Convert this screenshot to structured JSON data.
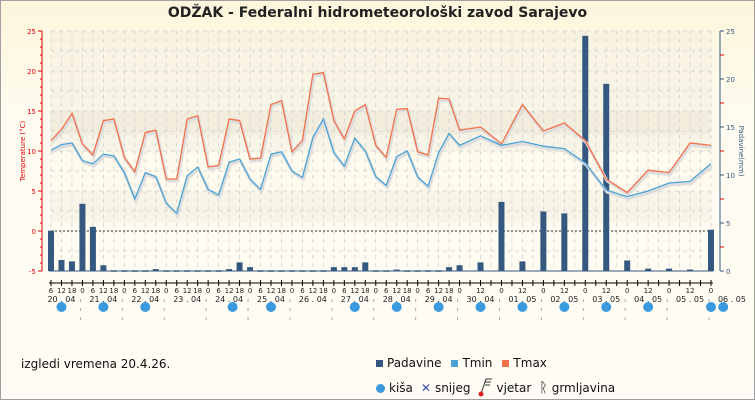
{
  "title": "ODŽAK - Federalni hidrometeorološki zavod Sarajevo",
  "footer": "izgledi vremena 20.4.26.",
  "legend": {
    "padavine": "Padavine",
    "tmin": "Tmin",
    "tmax": "Tmax",
    "kisa": "kiša",
    "snijeg": "snijeg",
    "vjetar": "vjetar",
    "grmljavina": "grmljavina"
  },
  "colors": {
    "padavine": "#34587f",
    "tmin": "#4aa3d6",
    "tmax": "#f4704a",
    "rain": "#3a9ae0",
    "axis_left": "#e00000",
    "axis_right": "#34587f"
  },
  "chart_data": {
    "type": "bar+line",
    "title": "ODŽAK - Federalni hidrometeorološki zavod Sarajevo",
    "ylabel": "Temperature (°C)",
    "y2label": "Padavine(mm)",
    "ylim": [
      -5,
      25
    ],
    "y2lim": [
      0,
      25
    ],
    "yticks": [
      -5,
      0,
      5,
      10,
      15,
      20,
      25
    ],
    "y2ticks": [
      0,
      5,
      10,
      15,
      20,
      25
    ],
    "days": [
      "20 . 04",
      "21 . 04",
      "22 . 04",
      "23 . 04",
      "24 . 04",
      "25 . 04",
      "26 . 04",
      "27 . 04",
      "28 . 04",
      "29 . 04",
      "30 . 04",
      "01 . 05",
      "02 . 05",
      "03 . 05",
      "04 . 05",
      "05 . 05",
      "06 . 05"
    ],
    "x_hours": [
      6,
      12,
      18,
      24,
      30,
      36,
      42,
      48,
      54,
      60,
      66,
      72,
      78,
      84,
      90,
      96,
      102,
      108,
      114,
      120,
      126,
      132,
      138,
      144,
      150,
      156,
      162,
      168,
      174,
      180,
      186,
      192,
      198,
      204,
      210,
      216,
      222,
      228,
      234,
      240,
      252,
      264,
      276,
      288,
      300,
      312,
      324,
      336,
      348,
      360,
      372,
      384
    ],
    "series": [
      {
        "name": "Tmax",
        "values": [
          11.3,
          12.7,
          14.7,
          10.9,
          9.5,
          13.8,
          14.0,
          9.2,
          7.4,
          12.3,
          12.6,
          6.5,
          6.5,
          14.0,
          14.4,
          8.0,
          8.2,
          14.0,
          13.8,
          9.0,
          9.1,
          15.8,
          16.3,
          9.9,
          11.3,
          19.6,
          19.8,
          13.8,
          11.5,
          15.0,
          15.8,
          10.7,
          9.2,
          15.2,
          15.3,
          9.9,
          9.5,
          16.6,
          16.5,
          12.6,
          13.0,
          10.9,
          15.8,
          12.5,
          13.5,
          11.3,
          6.5,
          4.8,
          7.6,
          7.3,
          11.0,
          10.7
        ]
      },
      {
        "name": "Tmin",
        "values": [
          10.1,
          10.8,
          11.0,
          8.8,
          8.4,
          9.6,
          9.4,
          7.3,
          4.0,
          7.3,
          6.8,
          3.5,
          2.2,
          6.9,
          8.0,
          5.2,
          4.5,
          8.6,
          9.0,
          6.5,
          5.2,
          9.6,
          9.9,
          7.5,
          6.7,
          11.7,
          14.0,
          9.8,
          8.1,
          11.6,
          10.0,
          6.8,
          5.7,
          9.3,
          10.0,
          6.75,
          5.6,
          9.8,
          12.2,
          10.7,
          11.9,
          10.7,
          11.2,
          10.6,
          10.3,
          8.5,
          5.1,
          4.3,
          5.0,
          6.0,
          6.2,
          8.4
        ]
      },
      {
        "name": "Padavine",
        "values": [
          4.2,
          1.15,
          1.0,
          7.0,
          4.6,
          0.6,
          0,
          0,
          0,
          0,
          0.2,
          0,
          0,
          0,
          0,
          0,
          0,
          0.2,
          0.9,
          0.4,
          0,
          0,
          0,
          0,
          0,
          0,
          0,
          0.4,
          0.4,
          0.4,
          0.9,
          0,
          0,
          0.15,
          0,
          0,
          0,
          0,
          0.4,
          0.6,
          0.9,
          7.2,
          1.0,
          6.2,
          6.0,
          24.5,
          19.5,
          1.1,
          0.25,
          0.25,
          0.15,
          4.3
        ]
      }
    ],
    "weather_icons": [
      {
        "hour": 12,
        "type": "kiša"
      },
      {
        "hour": 36,
        "type": "kiša"
      },
      {
        "hour": 60,
        "type": "kiša"
      },
      {
        "hour": 110,
        "type": "kiša"
      },
      {
        "hour": 132,
        "type": "kiša"
      },
      {
        "hour": 180,
        "type": "kiša"
      },
      {
        "hour": 204,
        "type": "kiša"
      },
      {
        "hour": 228,
        "type": "kiša"
      },
      {
        "hour": 252,
        "type": "kiša"
      },
      {
        "hour": 276,
        "type": "kiša"
      },
      {
        "hour": 300,
        "type": "kiša"
      },
      {
        "hour": 324,
        "type": "kiša"
      },
      {
        "hour": 348,
        "type": "kiša"
      },
      {
        "hour": 384,
        "type": "kiša"
      },
      {
        "hour": 391,
        "type": "kiša"
      }
    ]
  }
}
